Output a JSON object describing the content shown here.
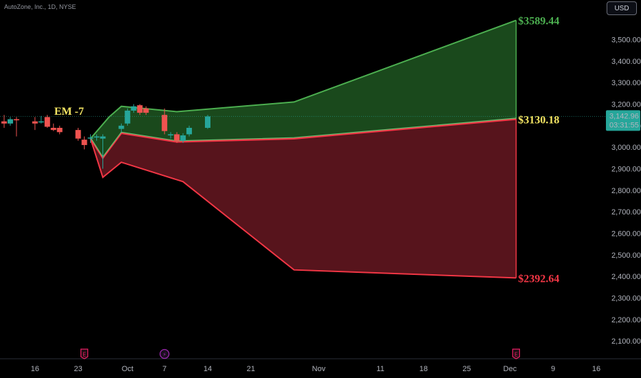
{
  "title": "AutoZone, Inc., 1D, NYSE",
  "currency_button": "USD",
  "colors": {
    "up": "#26a69a",
    "down": "#ef5350",
    "upper_line": "#4caf50",
    "lower_line": "#f23645",
    "upper_fill": "#1b4d1e",
    "lower_fill": "#5c151d",
    "price_tag": "#26a69a",
    "mid_label": "#f5e663",
    "event_earnings": "#e91e63",
    "event_split": "#9c27b0"
  },
  "annotations": {
    "em_label": "EM -7",
    "upper_value": "$3589.44",
    "mid_value": "$3130.18",
    "lower_value": "$2392.64"
  },
  "price_tag": {
    "price": "3,142.96",
    "countdown": "03:31:55",
    "value": 3142.96
  },
  "events": [
    {
      "glyph": "E",
      "date": "2024-09-24",
      "kind": "earnings"
    },
    {
      "glyph": "⚡",
      "date": "2024-10-07",
      "kind": "split"
    },
    {
      "glyph": "E",
      "date": "2024-12-03",
      "kind": "earnings"
    }
  ],
  "chart_data": {
    "type": "candlestick",
    "title": "AutoZone, Inc., 1D, NYSE",
    "ylim": [
      2030,
      3620
    ],
    "y_ticks": [
      2100,
      2200,
      2300,
      2400,
      2500,
      2600,
      2700,
      2800,
      2900,
      3000,
      3100,
      3200,
      3300,
      3400,
      3500
    ],
    "y_tick_labels": [
      "2,100.00",
      "2,200.00",
      "2,300.00",
      "2,400.00",
      "2,500.00",
      "2,600.00",
      "2,700.00",
      "2,800.00",
      "2,900.00",
      "3,000.00",
      "3,100.00",
      "3,200.00",
      "3,300.00",
      "3,400.00",
      "3,500.00"
    ],
    "x_range": [
      "2024-09-11",
      "2024-12-17"
    ],
    "x_ticks": [
      {
        "label": "16",
        "date": "2024-09-16"
      },
      {
        "label": "23",
        "date": "2024-09-23"
      },
      {
        "label": "Oct",
        "date": "2024-10-01"
      },
      {
        "label": "7",
        "date": "2024-10-07"
      },
      {
        "label": "14",
        "date": "2024-10-14"
      },
      {
        "label": "21",
        "date": "2024-10-21"
      },
      {
        "label": "Nov",
        "date": "2024-11-01"
      },
      {
        "label": "11",
        "date": "2024-11-11"
      },
      {
        "label": "18",
        "date": "2024-11-18"
      },
      {
        "label": "25",
        "date": "2024-11-25"
      },
      {
        "label": "Dec",
        "date": "2024-12-02"
      },
      {
        "label": "9",
        "date": "2024-12-09"
      },
      {
        "label": "16",
        "date": "2024-12-16"
      }
    ],
    "candles": [
      {
        "date": "2024-09-11",
        "open": 3120,
        "high": 3150,
        "low": 3090,
        "close": 3110
      },
      {
        "date": "2024-09-12",
        "open": 3110,
        "high": 3140,
        "low": 3100,
        "close": 3130
      },
      {
        "date": "2024-09-13",
        "open": 3130,
        "high": 3140,
        "low": 3050,
        "close": 3125
      },
      {
        "date": "2024-09-16",
        "open": 3120,
        "high": 3140,
        "low": 3080,
        "close": 3110
      },
      {
        "date": "2024-09-17",
        "open": 3115,
        "high": 3145,
        "low": 3110,
        "close": 3120
      },
      {
        "date": "2024-09-18",
        "open": 3140,
        "high": 3150,
        "low": 3090,
        "close": 3095
      },
      {
        "date": "2024-09-19",
        "open": 3090,
        "high": 3110,
        "low": 3075,
        "close": 3080
      },
      {
        "date": "2024-09-20",
        "open": 3090,
        "high": 3100,
        "low": 3060,
        "close": 3070
      },
      {
        "date": "2024-09-23",
        "open": 3080,
        "high": 3090,
        "low": 3030,
        "close": 3040
      },
      {
        "date": "2024-09-24",
        "open": 3035,
        "high": 3050,
        "low": 2990,
        "close": 3010
      },
      {
        "date": "2024-09-25",
        "open": 3040,
        "high": 3060,
        "low": 3020,
        "close": 3045
      },
      {
        "date": "2024-09-26",
        "open": 3045,
        "high": 3060,
        "low": 3030,
        "close": 3050
      },
      {
        "date": "2024-09-27",
        "open": 3040,
        "high": 3060,
        "low": 2900,
        "close": 3050
      },
      {
        "date": "2024-09-30",
        "open": 3085,
        "high": 3110,
        "low": 3070,
        "close": 3100
      },
      {
        "date": "2024-10-01",
        "open": 3110,
        "high": 3180,
        "low": 3100,
        "close": 3170
      },
      {
        "date": "2024-10-02",
        "open": 3170,
        "high": 3200,
        "low": 3160,
        "close": 3190
      },
      {
        "date": "2024-10-03",
        "open": 3195,
        "high": 3200,
        "low": 3150,
        "close": 3160
      },
      {
        "date": "2024-10-04",
        "open": 3180,
        "high": 3190,
        "low": 3150,
        "close": 3160
      },
      {
        "date": "2024-10-07",
        "open": 3150,
        "high": 3180,
        "low": 3060,
        "close": 3075
      },
      {
        "date": "2024-10-08",
        "open": 3055,
        "high": 3070,
        "low": 3040,
        "close": 3060
      },
      {
        "date": "2024-10-09",
        "open": 3060,
        "high": 3070,
        "low": 3020,
        "close": 3030
      },
      {
        "date": "2024-10-10",
        "open": 3030,
        "high": 3065,
        "low": 3020,
        "close": 3055
      },
      {
        "date": "2024-10-11",
        "open": 3060,
        "high": 3100,
        "low": 3050,
        "close": 3090
      },
      {
        "date": "2024-10-14",
        "open": 3090,
        "high": 3150,
        "low": 3085,
        "close": 3142.96
      }
    ],
    "upper_band": [
      {
        "date": "2024-09-25",
        "value": 3040
      },
      {
        "date": "2024-09-28",
        "value": 3140
      },
      {
        "date": "2024-09-30",
        "value": 3190
      },
      {
        "date": "2024-10-09",
        "value": 3165
      },
      {
        "date": "2024-10-28",
        "value": 3210
      },
      {
        "date": "2024-12-03",
        "value": 3589.44
      }
    ],
    "lower_band": [
      {
        "date": "2024-09-25",
        "value": 3040
      },
      {
        "date": "2024-09-27",
        "value": 2860
      },
      {
        "date": "2024-09-30",
        "value": 2930
      },
      {
        "date": "2024-10-10",
        "value": 2840
      },
      {
        "date": "2024-10-28",
        "value": 2430
      },
      {
        "date": "2024-12-03",
        "value": 2392.64
      }
    ],
    "mid_line": [
      {
        "date": "2024-09-25",
        "value": 3040
      },
      {
        "date": "2024-09-27",
        "value": 2950
      },
      {
        "date": "2024-09-30",
        "value": 3065
      },
      {
        "date": "2024-10-09",
        "value": 3025
      },
      {
        "date": "2024-10-28",
        "value": 3040
      },
      {
        "date": "2024-12-03",
        "value": 3130.18
      }
    ]
  }
}
